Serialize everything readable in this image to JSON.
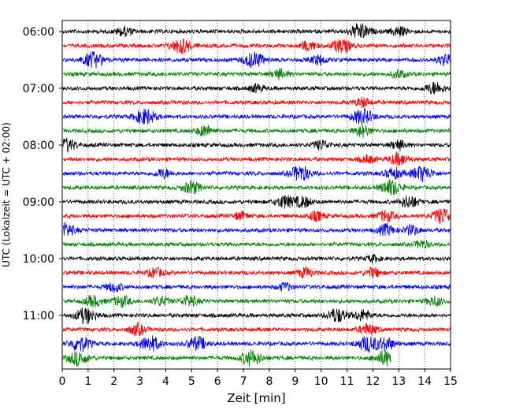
{
  "chart_data": {
    "type": "line",
    "title": "",
    "xlabel": "Zeit  [min]",
    "ylabel": "UTC (Lokalzeit = UTC + 02:00)",
    "xlim": [
      0,
      15
    ],
    "x_ticks": [
      "0",
      "1",
      "2",
      "3",
      "4",
      "5",
      "6",
      "7",
      "8",
      "9",
      "10",
      "11",
      "12",
      "13",
      "14",
      "15"
    ],
    "y_tick_labels": [
      "06:00",
      "07:00",
      "08:00",
      "09:00",
      "10:00",
      "11:00"
    ],
    "grid": "vertical dotted",
    "legend": "none",
    "trace_interval_min": 15,
    "trace_colors": [
      "#000000",
      "#ff0000",
      "#0000ff",
      "#008000"
    ],
    "traces": [
      {
        "start": "06:00",
        "color": "#000000",
        "end_min": 15,
        "bursts": [
          [
            2.4,
            0.6
          ],
          [
            11.5,
            1.0
          ],
          [
            13.0,
            0.6
          ]
        ]
      },
      {
        "start": "06:15",
        "color": "#ff0000",
        "end_min": 15,
        "bursts": [
          [
            4.6,
            1.0
          ],
          [
            9.5,
            0.6
          ],
          [
            10.8,
            0.9
          ]
        ]
      },
      {
        "start": "06:30",
        "color": "#0000ff",
        "end_min": 15,
        "bursts": [
          [
            1.2,
            1.0
          ],
          [
            7.4,
            1.0
          ],
          [
            9.9,
            0.6
          ],
          [
            14.8,
            0.7
          ]
        ]
      },
      {
        "start": "06:45",
        "color": "#008000",
        "end_min": 15,
        "bursts": [
          [
            8.4,
            0.6
          ],
          [
            13.0,
            0.5
          ]
        ]
      },
      {
        "start": "07:00",
        "color": "#000000",
        "end_min": 15,
        "bursts": [
          [
            7.5,
            0.5
          ],
          [
            14.4,
            0.8
          ]
        ]
      },
      {
        "start": "07:15",
        "color": "#ff0000",
        "end_min": 15,
        "bursts": [
          [
            11.6,
            0.6
          ]
        ]
      },
      {
        "start": "07:30",
        "color": "#0000ff",
        "end_min": 15,
        "bursts": [
          [
            3.2,
            1.0
          ],
          [
            11.6,
            1.0
          ]
        ]
      },
      {
        "start": "07:45",
        "color": "#008000",
        "end_min": 15,
        "bursts": [
          [
            5.5,
            0.7
          ],
          [
            11.6,
            0.7
          ]
        ]
      },
      {
        "start": "08:00",
        "color": "#000000",
        "end_min": 15,
        "bursts": [
          [
            0.2,
            0.8
          ],
          [
            10.0,
            0.6
          ],
          [
            13.0,
            0.6
          ]
        ]
      },
      {
        "start": "08:15",
        "color": "#ff0000",
        "end_min": 15,
        "bursts": [
          [
            11.8,
            0.5
          ],
          [
            13.0,
            0.8
          ]
        ]
      },
      {
        "start": "08:30",
        "color": "#0000ff",
        "end_min": 15,
        "bursts": [
          [
            3.9,
            0.6
          ],
          [
            9.2,
            1.0
          ],
          [
            12.8,
            0.7
          ],
          [
            13.9,
            1.0
          ]
        ]
      },
      {
        "start": "08:45",
        "color": "#008000",
        "end_min": 15,
        "bursts": [
          [
            5.0,
            0.8
          ],
          [
            12.7,
            1.0
          ]
        ]
      },
      {
        "start": "09:00",
        "color": "#000000",
        "end_min": 15,
        "bursts": [
          [
            8.6,
            0.8
          ],
          [
            9.3,
            0.7
          ],
          [
            13.4,
            0.8
          ]
        ]
      },
      {
        "start": "09:15",
        "color": "#ff0000",
        "end_min": 15,
        "bursts": [
          [
            6.9,
            0.5
          ],
          [
            9.8,
            0.6
          ],
          [
            12.5,
            0.7
          ],
          [
            14.7,
            1.0
          ]
        ]
      },
      {
        "start": "09:30",
        "color": "#0000ff",
        "end_min": 15,
        "bursts": [
          [
            0.1,
            0.9
          ],
          [
            12.5,
            0.7
          ],
          [
            13.5,
            0.6
          ]
        ]
      },
      {
        "start": "09:45",
        "color": "#008000",
        "end_min": 15,
        "bursts": [
          [
            13.9,
            0.5
          ]
        ]
      },
      {
        "start": "10:00",
        "color": "#000000",
        "end_min": 15,
        "bursts": [
          [
            12.0,
            0.4
          ]
        ]
      },
      {
        "start": "10:15",
        "color": "#ff0000",
        "end_min": 15,
        "bursts": [
          [
            3.6,
            0.6
          ],
          [
            9.4,
            0.6
          ],
          [
            12.0,
            0.6
          ]
        ]
      },
      {
        "start": "10:30",
        "color": "#0000ff",
        "end_min": 15,
        "bursts": [
          [
            2.0,
            0.6
          ],
          [
            8.6,
            0.5
          ]
        ]
      },
      {
        "start": "10:45",
        "color": "#008000",
        "end_min": 15,
        "bursts": [
          [
            1.2,
            0.7
          ],
          [
            2.3,
            0.7
          ],
          [
            3.8,
            0.6
          ],
          [
            4.9,
            0.7
          ],
          [
            14.4,
            0.6
          ]
        ]
      },
      {
        "start": "11:00",
        "color": "#000000",
        "end_min": 15,
        "bursts": [
          [
            0.9,
            1.0
          ],
          [
            10.6,
            0.9
          ],
          [
            11.6,
            0.7
          ]
        ]
      },
      {
        "start": "11:15",
        "color": "#ff0000",
        "end_min": 15,
        "bursts": [
          [
            2.9,
            0.7
          ],
          [
            11.8,
            0.7
          ]
        ]
      },
      {
        "start": "11:30",
        "color": "#0000ff",
        "end_min": 15,
        "bursts": [
          [
            0.7,
            1.0
          ],
          [
            3.4,
            1.0
          ],
          [
            5.2,
            0.9
          ],
          [
            11.8,
            1.0
          ],
          [
            12.5,
            0.8
          ]
        ]
      },
      {
        "start": "11:45",
        "color": "#008000",
        "end_min": 12.7,
        "bursts": [
          [
            0.6,
            0.9
          ],
          [
            7.3,
            1.0
          ],
          [
            12.5,
            1.0
          ]
        ]
      }
    ]
  }
}
